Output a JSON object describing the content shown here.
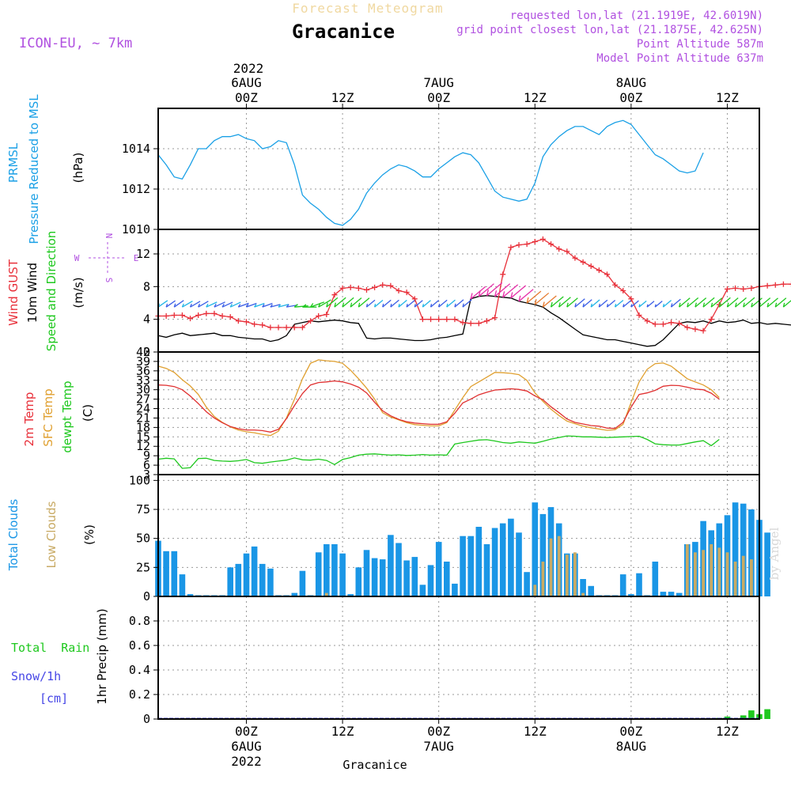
{
  "header": {
    "subtitle": "Forecast Meteogram",
    "location": "Gracanice",
    "model": "ICON-EU, ~ 7km",
    "requested": "requested lon,lat (21.1919E, 42.6019N)",
    "gridpoint": "grid point closest lon,lat (21.1875E, 42.625N)",
    "point_alt": "Point Altitude 587m",
    "model_alt": "Model Point Altitude 637m",
    "footer": "Gracanice",
    "credit": "by Angel"
  },
  "colors": {
    "pressure": "#1aa0e6",
    "gust": "#e8303a",
    "wind": "#000000",
    "t2m": "#e03030",
    "tsfc": "#e0a030",
    "dewpt": "#1ec81e",
    "total_clouds": "#1a96e6",
    "low_clouds": "#c8aa64",
    "rain": "#1ec81e",
    "snow": "#4646e6",
    "label_purple": "#b050e0"
  },
  "time_axis": {
    "top_year": "2022",
    "ticks": [
      {
        "h": 0,
        "top": [
          "6AUG",
          "00Z"
        ],
        "bottom": [
          "00Z",
          "6AUG",
          "2022"
        ]
      },
      {
        "h": 12,
        "top": [
          "12Z"
        ],
        "bottom": [
          "12Z"
        ]
      },
      {
        "h": 24,
        "top": [
          "7AUG",
          "00Z"
        ],
        "bottom": [
          "00Z",
          "7AUG"
        ]
      },
      {
        "h": 36,
        "top": [
          "12Z"
        ],
        "bottom": [
          "12Z"
        ]
      },
      {
        "h": 48,
        "top": [
          "8AUG",
          "00Z"
        ],
        "bottom": [
          "00Z",
          "8AUG"
        ]
      },
      {
        "h": 60,
        "top": [
          "12Z"
        ],
        "bottom": [
          "12Z"
        ]
      }
    ]
  },
  "panel_labels": {
    "pressure": [
      "PRMSL",
      "Pressure Reduced to MSL"
    ],
    "pressure_unit": "(hPa)",
    "wind": [
      "Wind GUST",
      "10m Wind",
      "Speed and Direction"
    ],
    "wind_unit": "(m/s)",
    "compass": {
      "n": "N",
      "s": "S",
      "w": "W",
      "e": "E"
    },
    "temp": [
      "2m Temp",
      "SFC Temp",
      "dewpt Temp"
    ],
    "temp_unit": "(C)",
    "clouds": [
      "Total Clouds",
      "Low Clouds"
    ],
    "clouds_unit": "(%)",
    "precip_left": [
      "Total  Rain",
      "Snow/1h",
      "[cm]"
    ],
    "precip_unit": "1hr Precip (mm)"
  },
  "chart_data": [
    {
      "type": "line",
      "panel": "pressure",
      "x_start_hour": -11,
      "x_step_hours": 1,
      "xlim": [
        -11,
        64
      ],
      "ylim": [
        1010,
        1016
      ],
      "yticks": [
        1010,
        1012,
        1014
      ],
      "series": [
        {
          "name": "PRMSL",
          "values": [
            1013.7,
            1013.2,
            1012.6,
            1012.5,
            1013.2,
            1014.0,
            1014.0,
            1014.4,
            1014.6,
            1014.6,
            1014.7,
            1014.5,
            1014.4,
            1014.0,
            1014.1,
            1014.4,
            1014.3,
            1013.2,
            1011.7,
            1011.3,
            1011.0,
            1010.6,
            1010.3,
            1010.2,
            1010.5,
            1011.0,
            1011.8,
            1012.3,
            1012.7,
            1013.0,
            1013.2,
            1013.1,
            1012.9,
            1012.6,
            1012.6,
            1013.0,
            1013.3,
            1013.6,
            1013.8,
            1013.7,
            1013.3,
            1012.6,
            1011.9,
            1011.6,
            1011.5,
            1011.4,
            1011.5,
            1012.3,
            1013.6,
            1014.2,
            1014.6,
            1014.9,
            1015.1,
            1015.1,
            1014.9,
            1014.7,
            1015.1,
            1015.3,
            1015.4,
            1015.2,
            1014.7,
            1014.2,
            1013.7,
            1013.5,
            1013.2,
            1012.9,
            1012.8,
            1012.9,
            1013.8
          ]
        }
      ]
    },
    {
      "type": "line",
      "panel": "wind",
      "x_start_hour": -11,
      "x_step_hours": 1,
      "xlim": [
        -11,
        64
      ],
      "ylim": [
        0,
        15
      ],
      "yticks": [
        0,
        4,
        8,
        12
      ],
      "series": [
        {
          "name": "Wind GUST",
          "values": [
            4.4,
            4.4,
            4.5,
            4.5,
            4.1,
            4.5,
            4.7,
            4.7,
            4.4,
            4.3,
            3.8,
            3.7,
            3.4,
            3.3,
            3.0,
            3.0,
            3.0,
            3.0,
            3.0,
            3.8,
            4.4,
            4.6,
            7.0,
            7.8,
            7.9,
            7.8,
            7.6,
            7.9,
            8.2,
            8.1,
            7.5,
            7.3,
            6.5,
            4.0,
            4.0,
            4.0,
            4.0,
            4.0,
            3.6,
            3.5,
            3.5,
            3.8,
            4.2,
            9.5,
            12.8,
            13.1,
            13.2,
            13.5,
            13.8,
            13.2,
            12.6,
            12.3,
            11.5,
            11.0,
            10.5,
            10.0,
            9.5,
            8.2,
            7.5,
            6.5,
            4.5,
            3.8,
            3.4,
            3.4,
            3.6,
            3.5,
            3.0,
            2.8,
            2.6,
            4.0,
            5.8,
            7.7,
            7.8,
            7.7,
            7.8,
            8.0,
            8.1,
            8.2,
            8.3,
            8.3,
            7.0
          ]
        },
        {
          "name": "10m Wind",
          "values": [
            2.0,
            1.8,
            2.1,
            2.3,
            2.0,
            2.1,
            2.2,
            2.3,
            2.0,
            2.0,
            1.8,
            1.7,
            1.6,
            1.6,
            1.3,
            1.5,
            2.0,
            3.4,
            3.6,
            3.8,
            3.7,
            3.8,
            3.9,
            3.8,
            3.6,
            3.5,
            1.7,
            1.6,
            1.7,
            1.7,
            1.6,
            1.5,
            1.4,
            1.4,
            1.5,
            1.7,
            1.8,
            2.0,
            2.2,
            6.5,
            6.8,
            6.9,
            6.8,
            6.7,
            6.6,
            6.2,
            6.0,
            5.8,
            5.5,
            4.8,
            4.2,
            3.5,
            2.8,
            2.1,
            1.9,
            1.7,
            1.5,
            1.5,
            1.3,
            1.1,
            0.9,
            0.7,
            0.8,
            1.5,
            2.5,
            3.5,
            3.7,
            3.6,
            3.8,
            3.5,
            3.8,
            3.6,
            3.7,
            3.9,
            3.5,
            3.6,
            3.4,
            3.5,
            3.4,
            3.3,
            3.4
          ]
        }
      ],
      "wind_dir_deg": [
        235,
        235,
        235,
        240,
        240,
        240,
        245,
        245,
        245,
        245,
        250,
        250,
        250,
        250,
        255,
        255,
        260,
        265,
        270,
        250,
        240,
        230,
        230,
        230,
        230,
        230,
        230,
        230,
        230,
        230,
        230,
        230,
        230,
        230,
        230,
        230,
        230,
        230,
        230,
        230,
        230,
        230,
        230,
        230,
        230,
        230,
        230,
        230,
        230,
        230,
        230,
        230,
        230,
        230,
        230,
        230,
        230,
        230,
        230,
        230,
        230,
        230,
        230,
        230,
        230,
        230,
        230,
        230,
        230,
        230,
        230,
        230,
        230,
        230,
        230,
        230,
        230,
        230,
        230,
        230,
        230
      ]
    },
    {
      "type": "line",
      "panel": "temperature",
      "x_start_hour": -11,
      "x_step_hours": 1,
      "xlim": [
        -11,
        64
      ],
      "ylim": [
        3,
        42
      ],
      "yticks": [
        3,
        6,
        9,
        12,
        15,
        18,
        21,
        24,
        27,
        30,
        33,
        36,
        39,
        42
      ],
      "series": [
        {
          "name": "2m Temp",
          "values": [
            31.5,
            31.4,
            31.0,
            30.0,
            28.0,
            25.6,
            23.0,
            21.0,
            19.5,
            18.3,
            17.6,
            17.2,
            17.2,
            17.0,
            16.5,
            17.4,
            20.8,
            25.0,
            28.8,
            31.5,
            32.3,
            32.5,
            32.8,
            32.5,
            31.8,
            30.8,
            29.0,
            26.0,
            23.3,
            21.7,
            20.6,
            19.8,
            19.4,
            19.2,
            19.0,
            19.0,
            19.8,
            22.5,
            25.8,
            27.0,
            28.4,
            29.2,
            29.9,
            30.1,
            30.3,
            30.1,
            29.6,
            28.0,
            26.8,
            24.6,
            22.7,
            20.7,
            19.6,
            19.1,
            18.6,
            18.4,
            17.8,
            17.7,
            19.6,
            24.5,
            28.5,
            29.0,
            29.8,
            31.1,
            31.4,
            31.3,
            30.8,
            30.2,
            30.0,
            28.9,
            27.0
          ]
        },
        {
          "name": "SFC Temp",
          "values": [
            37.5,
            36.8,
            35.5,
            33.2,
            31.2,
            28.5,
            24.5,
            21.5,
            19.6,
            18.2,
            17.2,
            16.6,
            16.3,
            15.8,
            15.4,
            16.8,
            21.0,
            27.0,
            33.5,
            38.4,
            39.5,
            39.2,
            39.0,
            38.4,
            36.2,
            33.5,
            30.5,
            27.0,
            22.7,
            21.3,
            20.4,
            19.5,
            18.9,
            18.7,
            18.5,
            18.5,
            19.5,
            23.5,
            27.5,
            31.0,
            32.5,
            34.0,
            35.5,
            35.4,
            35.2,
            34.8,
            33.0,
            29.0,
            26.3,
            23.8,
            21.8,
            20.0,
            19.2,
            18.4,
            17.9,
            17.5,
            17.1,
            17.3,
            19.0,
            26.0,
            32.5,
            36.5,
            38.3,
            38.5,
            37.5,
            35.5,
            33.5,
            32.5,
            31.5,
            30.0,
            27.5
          ]
        },
        {
          "name": "dewpt Temp",
          "values": [
            7.9,
            8.2,
            8.0,
            5.0,
            5.2,
            8.1,
            8.2,
            7.5,
            7.3,
            7.2,
            7.4,
            7.8,
            6.8,
            6.6,
            7.0,
            7.3,
            7.6,
            8.3,
            7.7,
            7.6,
            7.9,
            7.5,
            6.2,
            7.8,
            8.4,
            9.2,
            9.5,
            9.6,
            9.4,
            9.2,
            9.3,
            9.1,
            9.2,
            9.4,
            9.2,
            9.3,
            9.2,
            12.7,
            13.2,
            13.6,
            14.0,
            14.1,
            13.7,
            13.2,
            13.0,
            13.4,
            13.2,
            13.0,
            13.6,
            14.3,
            14.8,
            15.3,
            15.2,
            15.0,
            15.0,
            14.9,
            14.8,
            14.9,
            15.0,
            15.1,
            15.2,
            14.2,
            12.8,
            12.5,
            12.4,
            12.4,
            12.9,
            13.4,
            13.8,
            12.2,
            14.2
          ]
        }
      ]
    },
    {
      "type": "bar",
      "panel": "clouds",
      "x_start_hour": -11,
      "x_step_hours": 1,
      "xlim": [
        -11,
        64
      ],
      "ylim": [
        0,
        105
      ],
      "yticks": [
        0,
        25,
        50,
        75,
        100
      ],
      "series": [
        {
          "name": "Total Clouds",
          "values": [
            48,
            39,
            39,
            19,
            2,
            1,
            1,
            1,
            1,
            25,
            28,
            37,
            43,
            28,
            24,
            1,
            1,
            3,
            22,
            1,
            38,
            45,
            45,
            37,
            2,
            25,
            40,
            33,
            32,
            53,
            46,
            31,
            34,
            10,
            27,
            47,
            30,
            11,
            52,
            52,
            60,
            45,
            59,
            63,
            67,
            55,
            21,
            81,
            71,
            77,
            63,
            37,
            37,
            15,
            9,
            1,
            1,
            1,
            19,
            2,
            20,
            1,
            30,
            4,
            4,
            3,
            45,
            47,
            65,
            57,
            63,
            70,
            81,
            80,
            75,
            66,
            55
          ]
        },
        {
          "name": "Low Clouds",
          "values": [
            0,
            0,
            0,
            0,
            0,
            0,
            0,
            0,
            0,
            0,
            0,
            0,
            0,
            0,
            0,
            0,
            0,
            0,
            0,
            0,
            0,
            3,
            0,
            0,
            0,
            0,
            0,
            0,
            0,
            0,
            0,
            0,
            0,
            0,
            0,
            0,
            0,
            0,
            0,
            0,
            0,
            0,
            0,
            0,
            0,
            0,
            0,
            10,
            30,
            50,
            52,
            36,
            38,
            3,
            0,
            0,
            0,
            0,
            0,
            0,
            0,
            0,
            0,
            0,
            0,
            0,
            45,
            38,
            40,
            45,
            42,
            38,
            30,
            35,
            32,
            0,
            0
          ]
        }
      ]
    },
    {
      "type": "bar",
      "panel": "precip",
      "x_start_hour": -11,
      "x_step_hours": 1,
      "xlim": [
        -11,
        64
      ],
      "ylim": [
        0,
        1.0
      ],
      "yticks": [
        0,
        0.2,
        0.4,
        0.6,
        0.8
      ],
      "series": [
        {
          "name": "Total Rain",
          "values": [
            0,
            0,
            0,
            0,
            0,
            0,
            0,
            0,
            0,
            0,
            0,
            0,
            0,
            0,
            0,
            0,
            0,
            0,
            0,
            0,
            0,
            0,
            0,
            0,
            0,
            0,
            0,
            0,
            0,
            0,
            0,
            0,
            0,
            0,
            0,
            0,
            0,
            0,
            0,
            0,
            0,
            0,
            0,
            0,
            0,
            0,
            0,
            0,
            0,
            0,
            0,
            0,
            0,
            0,
            0,
            0,
            0,
            0,
            0,
            0,
            0,
            0,
            0,
            0,
            0,
            0,
            0,
            0,
            0,
            0.005,
            0.01,
            0.02,
            0,
            0.03,
            0.07,
            0.04,
            0.08
          ]
        },
        {
          "name": "Snow/1h",
          "values": [
            0,
            0,
            0,
            0,
            0,
            0,
            0,
            0,
            0,
            0,
            0,
            0,
            0,
            0,
            0,
            0,
            0,
            0,
            0,
            0,
            0,
            0,
            0,
            0,
            0,
            0,
            0,
            0,
            0,
            0,
            0,
            0,
            0,
            0,
            0,
            0,
            0,
            0,
            0,
            0,
            0,
            0,
            0,
            0,
            0,
            0,
            0,
            0,
            0,
            0,
            0,
            0,
            0,
            0,
            0,
            0,
            0,
            0,
            0,
            0,
            0,
            0,
            0,
            0,
            0,
            0,
            0,
            0,
            0,
            0,
            0,
            0,
            0,
            0,
            0,
            0,
            0
          ]
        }
      ]
    }
  ]
}
